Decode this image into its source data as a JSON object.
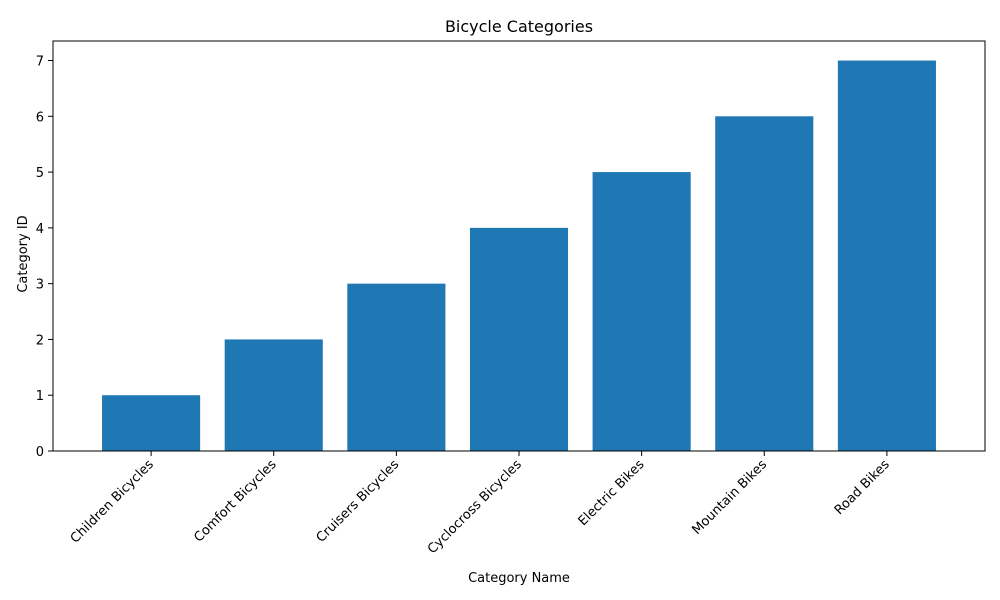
{
  "chart_data": {
    "type": "bar",
    "title": "Bicycle Categories",
    "xlabel": "Category Name",
    "ylabel": "Category ID",
    "categories": [
      "Children Bicycles",
      "Comfort Bicycles",
      "Cruisers Bicycles",
      "Cyclocross Bicycles",
      "Electric Bikes",
      "Mountain Bikes",
      "Road Bikes"
    ],
    "values": [
      1,
      2,
      3,
      4,
      5,
      6,
      7
    ],
    "ylim": [
      0,
      7.35
    ],
    "yticks": [
      0,
      1,
      2,
      3,
      4,
      5,
      6,
      7
    ],
    "bar_color": "#1f77b4",
    "grid": false,
    "legend": "none"
  }
}
